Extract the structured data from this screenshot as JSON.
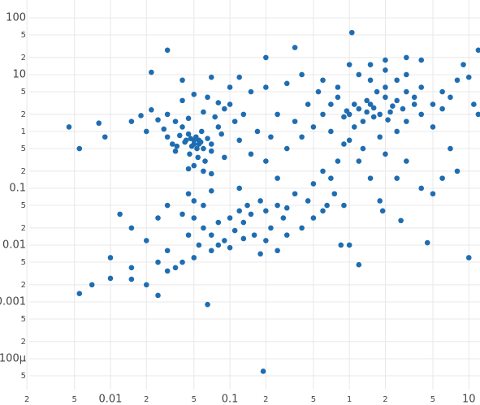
{
  "chart_data": {
    "type": "scatter",
    "color": "#1f6db1",
    "log_x": true,
    "log_y": true,
    "grid": true,
    "xlim": [
      0.00119,
      12.4
    ],
    "ylim": [
      2.86e-05,
      206
    ],
    "xticks": [
      {
        "value": 0.002,
        "label": "2"
      },
      {
        "value": 0.005,
        "label": "5"
      },
      0.01,
      {
        "value": 0.02,
        "label": "2"
      },
      {
        "value": 0.05,
        "label": "5"
      },
      0.1,
      {
        "value": 0.2,
        "label": "2"
      },
      {
        "value": 0.5,
        "label": "5"
      },
      1,
      {
        "value": 2,
        "label": "2"
      },
      {
        "value": 5,
        "label": "5"
      },
      10
    ],
    "yticks": [
      {
        "value": 5e-05,
        "label": "5"
      },
      {
        "value": 0.0001,
        "label": "100µ"
      },
      {
        "value": 0.0002,
        "label": "2"
      },
      {
        "value": 0.0005,
        "label": "5"
      },
      0.001,
      {
        "value": 0.002,
        "label": "2"
      },
      {
        "value": 0.005,
        "label": "5"
      },
      0.01,
      {
        "value": 0.02,
        "label": "2"
      },
      {
        "value": 0.05,
        "label": "5"
      },
      0.1,
      {
        "value": 0.2,
        "label": "2"
      },
      {
        "value": 0.5,
        "label": "5"
      },
      1,
      {
        "value": 2,
        "label": "2"
      },
      {
        "value": 5,
        "label": "5"
      },
      10,
      {
        "value": 20,
        "label": "2"
      },
      {
        "value": 50,
        "label": "5"
      },
      100
    ],
    "x": [
      0.0045,
      0.0055,
      0.008,
      0.009,
      0.0055,
      0.007,
      0.01,
      0.19,
      0.065,
      0.025,
      1.05,
      10,
      12,
      0.03,
      0.022,
      0.03,
      0.035,
      0.04,
      0.045,
      0.05,
      0.055,
      0.06,
      0.048,
      0.042,
      0.052,
      0.058,
      0.065,
      0.07,
      0.038,
      0.033,
      0.046,
      0.054,
      0.062,
      0.05,
      0.045,
      0.06,
      0.075,
      0.08,
      0.09,
      0.1,
      0.085,
      0.028,
      0.025,
      0.022,
      0.04,
      0.05,
      0.065,
      0.11,
      0.12,
      0.055,
      0.05,
      0.047,
      0.053,
      0.057,
      0.043,
      0.036,
      0.07,
      0.03,
      0.08,
      0.07,
      0.04,
      0.1,
      0.12,
      0.15,
      0.13,
      0.035,
      0.06,
      0.07,
      0.045,
      0.018,
      0.015,
      0.02,
      0.09,
      0.05,
      0.06,
      0.07,
      0.08,
      0.1,
      0.12,
      0.09,
      0.11,
      0.13,
      0.15,
      0.14,
      0.18,
      0.2,
      0.25,
      0.3,
      0.35,
      0.22,
      0.16,
      0.06,
      0.05,
      0.04,
      0.045,
      0.055,
      0.07,
      0.08,
      0.1,
      0.04,
      0.035,
      0.05,
      0.03,
      0.025,
      0.03,
      0.02,
      0.015,
      0.012,
      0.025,
      0.03,
      0.045,
      0.07,
      0.12,
      0.2,
      0.25,
      0.18,
      0.4,
      0.5,
      0.45,
      0.6,
      0.3,
      0.28,
      0.13,
      0.015,
      0.01,
      0.02,
      0.015,
      0.2,
      0.3,
      0.4,
      0.5,
      0.6,
      0.7,
      0.35,
      0.25,
      0.45,
      0.55,
      0.3,
      0.2,
      0.4,
      0.6,
      0.8,
      0.7,
      0.9,
      0.8,
      0.5,
      0.25,
      0.15,
      0.17,
      0.22,
      0.6,
      0.75,
      0.9,
      0.65,
      0.85,
      1.2,
      1,
      0.2,
      0.35,
      1,
      1.2,
      1.5,
      1.8,
      2,
      2.5,
      3,
      1.3,
      1.1,
      0.9,
      1.6,
      2.2,
      1.4,
      1.7,
      2,
      2.5,
      3,
      3.5,
      4,
      5,
      6,
      2,
      1.5,
      1.2,
      1,
      0.8,
      0.7,
      1,
      1.3,
      1.8,
      2.5,
      3,
      4,
      5,
      6,
      7,
      8,
      9,
      4,
      3,
      2,
      1.5,
      1.2,
      2,
      3,
      2.5,
      1.5,
      1.8,
      4,
      5,
      7,
      8,
      4.5,
      2.7,
      1.9,
      1.4,
      1.6,
      2.3,
      2.8,
      1.1,
      0.95,
      2.1,
      3.5,
      11,
      10,
      12,
      6
    ],
    "y": [
      1.2,
      0.5,
      1.4,
      0.8,
      0.0014,
      0.002,
      0.0026,
      6e-05,
      0.0009,
      0.0013,
      55,
      0.006,
      27,
      27,
      11,
      2,
      1.5,
      1.2,
      0.9,
      0.7,
      0.6,
      0.5,
      0.55,
      0.65,
      0.8,
      1,
      0.75,
      0.45,
      0.85,
      0.6,
      0.4,
      0.35,
      0.3,
      0.25,
      1.7,
      2.2,
      1.8,
      1.2,
      2.5,
      3,
      0.9,
      1.1,
      1.6,
      2.4,
      3.5,
      4.5,
      4,
      1.5,
      0.7,
      0.7,
      0.6,
      0.75,
      0.5,
      0.65,
      0.7,
      0.55,
      0.6,
      0.8,
      3.2,
      9,
      8,
      6,
      9,
      5,
      2,
      0.45,
      0.2,
      0.18,
      0.22,
      1.9,
      1.5,
      1,
      0.35,
      0.03,
      0.02,
      0.015,
      0.025,
      0.03,
      0.04,
      0.012,
      0.018,
      0.025,
      0.035,
      0.05,
      0.06,
      0.04,
      0.05,
      0.045,
      0.08,
      0.02,
      0.015,
      0.05,
      0.06,
      0.035,
      0.015,
      0.01,
      0.008,
      0.01,
      0.009,
      0.005,
      0.004,
      0.006,
      0.0035,
      0.005,
      0.008,
      0.012,
      0.02,
      0.035,
      0.03,
      0.05,
      0.08,
      0.09,
      0.1,
      0.012,
      0.008,
      0.007,
      0.02,
      0.03,
      0.06,
      0.04,
      0.015,
      0.03,
      0.013,
      0.004,
      0.006,
      0.002,
      0.0025,
      0.3,
      0.5,
      0.8,
      1.2,
      0.2,
      0.15,
      1.5,
      2,
      3,
      5,
      7,
      6,
      10,
      8,
      4,
      1,
      0.6,
      0.3,
      0.12,
      0.15,
      0.4,
      1,
      0.8,
      2,
      0.08,
      0.05,
      0.05,
      0.01,
      0.0045,
      0.01,
      20,
      30,
      2,
      2.5,
      3,
      2,
      4,
      3.5,
      5,
      1.5,
      1.2,
      1.8,
      1.8,
      2.2,
      2.2,
      5,
      6,
      8,
      10,
      4,
      6,
      3,
      5,
      12,
      8,
      10,
      15,
      6,
      3,
      0.7,
      0.5,
      0.8,
      1,
      1.5,
      2,
      1.2,
      2.5,
      4,
      8,
      15,
      18,
      20,
      18,
      15,
      0.3,
      0.4,
      0.3,
      0.15,
      0.15,
      0.06,
      0.1,
      0.08,
      0.5,
      0.2,
      0.011,
      0.027,
      0.04,
      3.5,
      2.6,
      2.8,
      2.5,
      3,
      2.3,
      1.6,
      3,
      3,
      9,
      2,
      0.15
    ]
  }
}
